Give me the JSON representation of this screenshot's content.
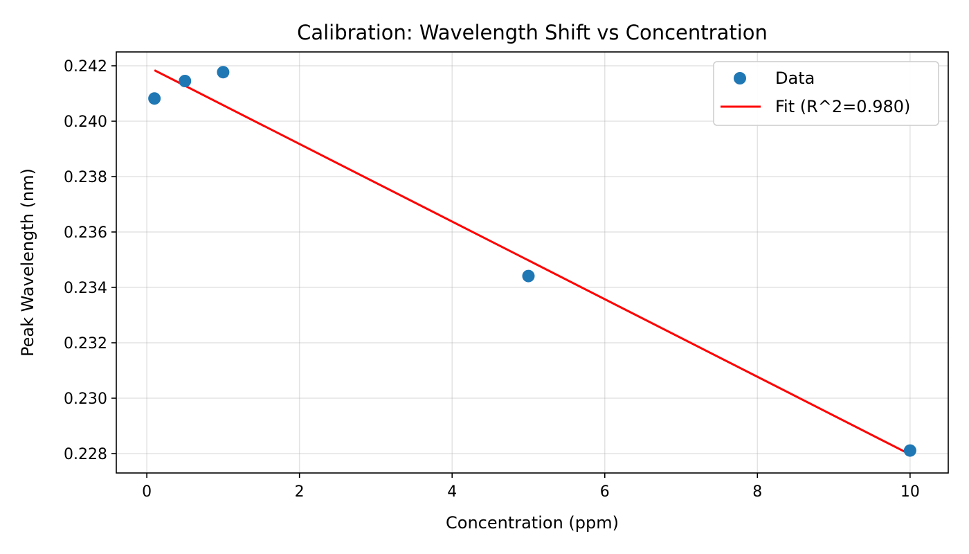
{
  "chart_data": {
    "type": "scatter",
    "title": "Calibration: Wavelength Shift vs Concentration",
    "xlabel": "Concentration (ppm)",
    "ylabel": "Peak Wavelength (nm)",
    "xlim": [
      -0.4,
      10.5
    ],
    "ylim": [
      0.2273,
      0.2425
    ],
    "xticks": [
      0,
      2,
      4,
      6,
      8,
      10
    ],
    "xtick_labels": [
      "0",
      "2",
      "4",
      "6",
      "8",
      "10"
    ],
    "yticks": [
      0.228,
      0.23,
      0.232,
      0.234,
      0.236,
      0.238,
      0.24,
      0.242
    ],
    "ytick_labels": [
      "0.228",
      "0.230",
      "0.232",
      "0.234",
      "0.236",
      "0.238",
      "0.240",
      "0.242"
    ],
    "grid": true,
    "legend_position": "top-right",
    "series": [
      {
        "name": "Data",
        "kind": "scatter",
        "color": "#1f77b4",
        "x": [
          0.1,
          0.5,
          1.0,
          5.0,
          10.0
        ],
        "y": [
          0.24082,
          0.24145,
          0.24177,
          0.23441,
          0.22811
        ]
      },
      {
        "name": "Fit (R^2=0.980)",
        "kind": "line",
        "color": "#ff0000",
        "x": [
          0.1,
          10.0
        ],
        "y": [
          0.24184,
          0.22797
        ]
      }
    ]
  }
}
